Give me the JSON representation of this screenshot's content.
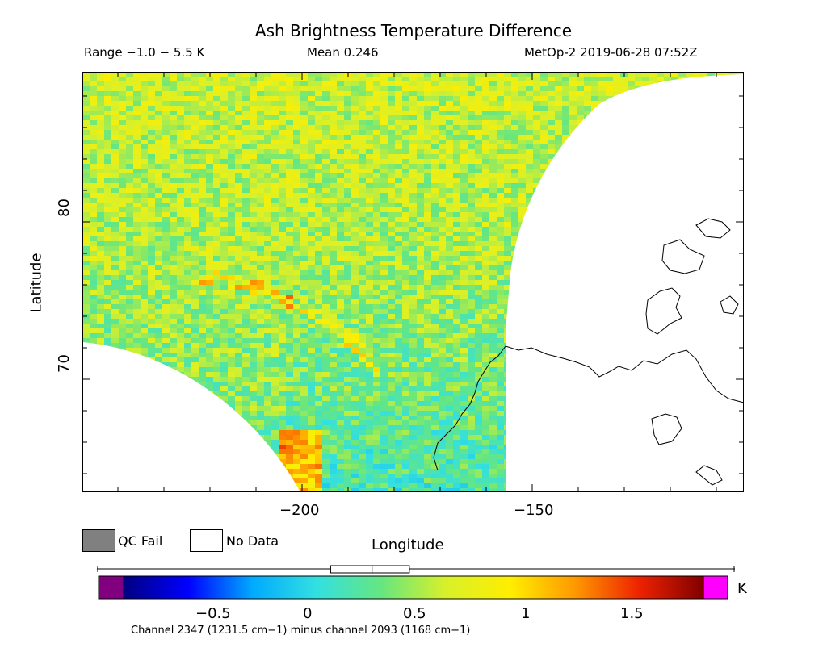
{
  "title": "Ash Brightness Temperature Difference",
  "range_text": "Range −1.0 − 5.5 K",
  "mean_text": "Mean 0.246",
  "satellite_text": "MetOp-2 2019-06-28 07:52Z",
  "map": {
    "xlabel": "Longitude",
    "ylabel": "Latitude",
    "x_ticks": [
      "−200",
      "−150"
    ],
    "y_ticks": [
      "80",
      "70"
    ],
    "xlim": [
      -245,
      -100
    ],
    "ylim": [
      61,
      88
    ],
    "colors": {
      "no_data": "#ffffff",
      "qc_fail": "#808080",
      "coastline": "#000000"
    }
  },
  "legend": {
    "qc_fail": "QC Fail",
    "no_data": "No Data"
  },
  "colorbar": {
    "unit": "K",
    "tick_labels": [
      "−0.5",
      "0",
      "0.5",
      "1",
      "1.5"
    ],
    "tick_values": [
      -0.5,
      0,
      0.5,
      1,
      1.5
    ],
    "vmin": -0.95,
    "vmax": 1.85,
    "under_color": "#800080",
    "over_color": "#ff00ff",
    "stops": [
      "#000080",
      "#0000ff",
      "#00aaff",
      "#33e0e0",
      "#66e680",
      "#d8f02a",
      "#ffee00",
      "#ff9900",
      "#ee2200",
      "#800000"
    ],
    "box_stats": {
      "q1": 0.05,
      "median": 0.25,
      "q3": 0.43
    }
  },
  "caption": "Channel 2347 (1231.5 cm−1) minus channel 2093 (1168 cm−1)"
}
